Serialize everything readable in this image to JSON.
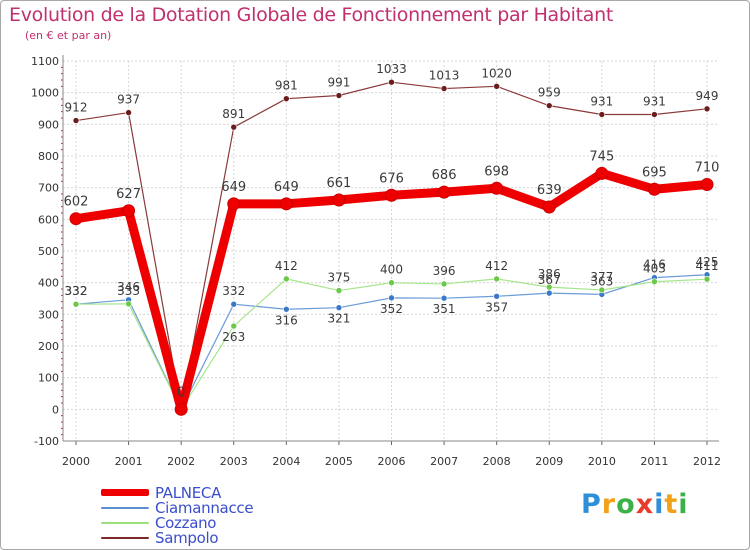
{
  "header": {
    "title": "Evolution de la Dotation Globale de Fonctionnement par Habitant",
    "subtitle": "(en € et par an)"
  },
  "logo": {
    "text": "Proxiti",
    "letter_colors": [
      "#2e8fd8",
      "#f2a21a",
      "#3cb14a",
      "#e83c2b",
      "#2e8fd8",
      "#f2a21a",
      "#3cb14a"
    ]
  },
  "chart_data": {
    "type": "line",
    "title": "Evolution de la Dotation Globale de Fonctionnement par Habitant",
    "subtitle": "(en € et par an)",
    "xlabel": "",
    "ylabel": "",
    "ylim": [
      -100,
      1100
    ],
    "yticks": [
      -100,
      0,
      100,
      200,
      300,
      400,
      500,
      600,
      700,
      800,
      900,
      1000,
      1100
    ],
    "grid": true,
    "legend_position": "bottom-left",
    "categories": [
      "2000",
      "2001",
      "2002",
      "2003",
      "2004",
      "2005",
      "2006",
      "2007",
      "2008",
      "2009",
      "2010",
      "2011",
      "2012"
    ],
    "series": [
      {
        "name": "Sampolo",
        "color": "#7a2a2a",
        "values": [
          912,
          937,
          0,
          891,
          981,
          991,
          1033,
          1013,
          1020,
          959,
          931,
          931,
          949
        ],
        "labels": [
          "912",
          "937",
          "0",
          "891",
          "981",
          "991",
          "1033",
          "1013",
          "1020",
          "959",
          "931",
          "931",
          "949"
        ]
      },
      {
        "name": "Ciamannacce",
        "color": "#5a8fd0",
        "values": [
          332,
          346,
          0,
          332,
          316,
          321,
          352,
          351,
          357,
          367,
          363,
          416,
          425
        ],
        "labels": [
          "332",
          "346",
          "0",
          "332",
          "316",
          "321",
          "352",
          "351",
          "357",
          "367",
          "363",
          "416",
          "425"
        ]
      },
      {
        "name": "Cozzano",
        "color": "#9be07a",
        "values": [
          332,
          333,
          0,
          263,
          412,
          375,
          400,
          396,
          412,
          386,
          377,
          403,
          411
        ],
        "labels": [
          "332",
          "333",
          "0",
          "263",
          "412",
          "375",
          "400",
          "396",
          "412",
          "386",
          "377",
          "403",
          "411"
        ]
      },
      {
        "name": "PALNECA",
        "color": "#ee0000",
        "values": [
          602,
          627,
          0,
          649,
          649,
          661,
          676,
          686,
          698,
          639,
          745,
          695,
          710
        ],
        "labels": [
          "602",
          "627",
          "0",
          "649",
          "649",
          "661",
          "676",
          "686",
          "698",
          "639",
          "745",
          "695",
          "710"
        ]
      }
    ],
    "legend": [
      {
        "name": "PALNECA",
        "color": "#ee0000",
        "thickness": 7
      },
      {
        "name": "Ciamannacce",
        "color": "#5a8fd0",
        "thickness": 2
      },
      {
        "name": "Cozzano",
        "color": "#9be07a",
        "thickness": 2
      },
      {
        "name": "Sampolo",
        "color": "#7a2a2a",
        "thickness": 2
      }
    ]
  }
}
